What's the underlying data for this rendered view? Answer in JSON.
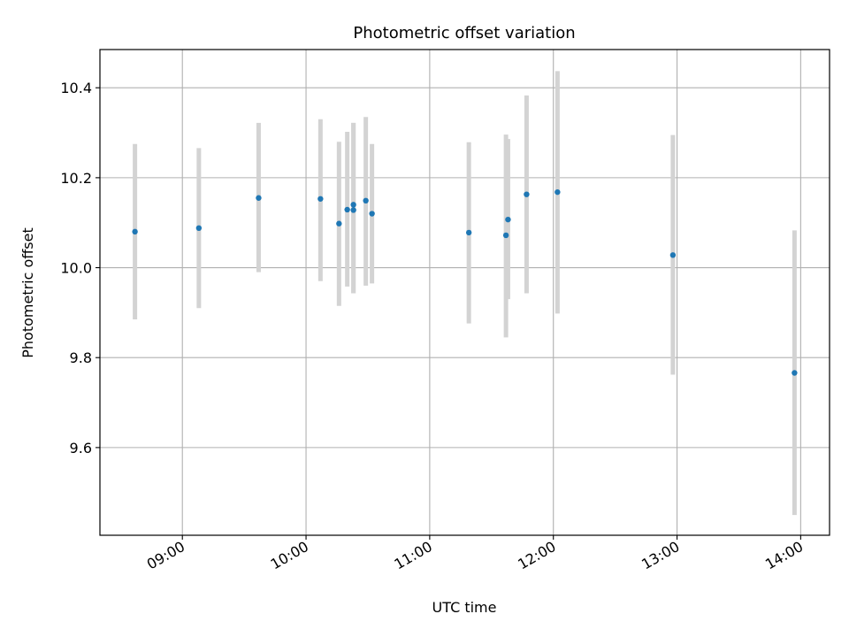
{
  "chart_data": {
    "type": "scatter",
    "title": "Photometric offset variation",
    "xlabel": "UTC time",
    "ylabel": "Photometric offset",
    "xlim": [
      "08:20",
      "14:14"
    ],
    "ylim": [
      9.405,
      10.485
    ],
    "x_ticks": [
      "09:00",
      "10:00",
      "11:00",
      "12:00",
      "13:00",
      "14:00"
    ],
    "y_ticks": [
      9.6,
      9.8,
      10.0,
      10.2,
      10.4
    ],
    "y_tick_labels": [
      "9.6",
      "9.8",
      "10.0",
      "10.2",
      "10.4"
    ],
    "grid": true,
    "colors": {
      "marker": "#1f77b4",
      "errorbar": "#d3d3d3",
      "grid": "#b0b0b0"
    },
    "points": [
      {
        "x": "08:37",
        "y": 10.08,
        "ylow": 9.885,
        "yhigh": 10.275
      },
      {
        "x": "09:08",
        "y": 10.088,
        "ylow": 9.91,
        "yhigh": 10.266
      },
      {
        "x": "09:37",
        "y": 10.155,
        "ylow": 9.99,
        "yhigh": 10.322
      },
      {
        "x": "10:07",
        "y": 10.153,
        "ylow": 9.97,
        "yhigh": 10.33
      },
      {
        "x": "10:16",
        "y": 10.098,
        "ylow": 9.915,
        "yhigh": 10.28
      },
      {
        "x": "10:20",
        "y": 10.129,
        "ylow": 9.958,
        "yhigh": 10.302
      },
      {
        "x": "10:23",
        "y": 10.14,
        "ylow": 9.943,
        "yhigh": 10.322
      },
      {
        "x": "10:23",
        "y": 10.128,
        "ylow": 9.943,
        "yhigh": 10.322
      },
      {
        "x": "10:29",
        "y": 10.149,
        "ylow": 9.96,
        "yhigh": 10.335
      },
      {
        "x": "10:32",
        "y": 10.12,
        "ylow": 9.965,
        "yhigh": 10.275
      },
      {
        "x": "11:19",
        "y": 10.078,
        "ylow": 9.876,
        "yhigh": 10.279
      },
      {
        "x": "11:37",
        "y": 10.072,
        "ylow": 9.845,
        "yhigh": 10.296
      },
      {
        "x": "11:38",
        "y": 10.107,
        "ylow": 9.93,
        "yhigh": 10.286
      },
      {
        "x": "11:47",
        "y": 10.163,
        "ylow": 9.943,
        "yhigh": 10.383
      },
      {
        "x": "12:02",
        "y": 10.168,
        "ylow": 9.898,
        "yhigh": 10.437
      },
      {
        "x": "12:58",
        "y": 10.028,
        "ylow": 9.762,
        "yhigh": 10.295
      },
      {
        "x": "13:57",
        "y": 9.766,
        "ylow": 9.45,
        "yhigh": 10.083
      }
    ]
  }
}
